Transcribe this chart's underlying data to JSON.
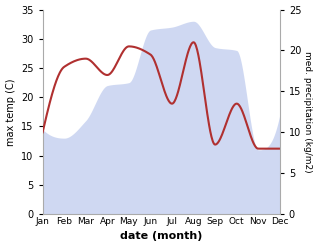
{
  "months": [
    "Jan",
    "Feb",
    "Mar",
    "Apr",
    "May",
    "Jun",
    "Jul",
    "Aug",
    "Sep",
    "Oct",
    "Nov",
    "Dec"
  ],
  "month_positions": [
    0,
    1,
    2,
    3,
    4,
    5,
    6,
    7,
    8,
    9,
    10,
    11
  ],
  "max_temp": [
    14.5,
    13.0,
    16.0,
    22.0,
    22.5,
    31.5,
    32.0,
    33.0,
    28.5,
    28.0,
    11.0,
    17.0
  ],
  "precipitation": [
    10.0,
    18.0,
    19.0,
    17.0,
    20.5,
    19.5,
    13.5,
    21.0,
    8.5,
    13.5,
    8.0,
    8.0
  ],
  "precip_color": "#b03030",
  "left_ylabel": "max temp (C)",
  "right_ylabel": "med. precipitation (kg/m2)",
  "xlabel": "date (month)",
  "ylim_temp": [
    0,
    35
  ],
  "ylim_precip": [
    0,
    25
  ],
  "background_color": "#ffffff",
  "yticks_temp": [
    0,
    5,
    10,
    15,
    20,
    25,
    30,
    35
  ],
  "yticks_precip": [
    0,
    5,
    10,
    15,
    20,
    25
  ],
  "fill_color": "#c0ccee",
  "fill_alpha": 0.75
}
